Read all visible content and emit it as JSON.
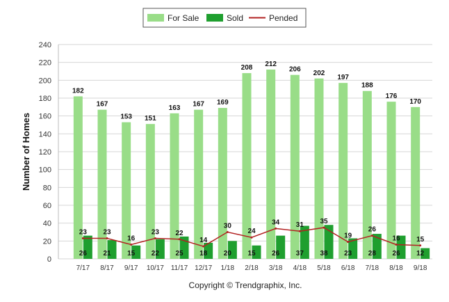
{
  "chart_data": {
    "type": "bar",
    "title": "",
    "xlabel": "",
    "ylabel": "Number of Homes",
    "ylim": [
      0,
      240
    ],
    "yticks": [
      0,
      20,
      40,
      60,
      80,
      100,
      120,
      140,
      160,
      180,
      200,
      220,
      240
    ],
    "grid": true,
    "legend_position": "top-center",
    "categories": [
      "7/17",
      "8/17",
      "9/17",
      "10/17",
      "11/17",
      "12/17",
      "1/18",
      "2/18",
      "3/18",
      "4/18",
      "5/18",
      "6/18",
      "7/18",
      "8/18",
      "9/18"
    ],
    "series": [
      {
        "name": "For Sale",
        "kind": "bar",
        "color": "#99dd88",
        "values": [
          182,
          167,
          153,
          151,
          163,
          167,
          169,
          208,
          212,
          206,
          202,
          197,
          188,
          176,
          170
        ]
      },
      {
        "name": "Sold",
        "kind": "bar",
        "color": "#1f9f2f",
        "values": [
          26,
          21,
          15,
          22,
          25,
          18,
          20,
          15,
          26,
          37,
          38,
          23,
          28,
          26,
          12
        ]
      },
      {
        "name": "Pended",
        "kind": "line",
        "color": "#b22222",
        "values": [
          23,
          23,
          16,
          23,
          22,
          14,
          30,
          24,
          34,
          31,
          35,
          19,
          26,
          16,
          15
        ]
      }
    ]
  },
  "footer": {
    "copyright": "Copyright © Trendgraphix, Inc."
  }
}
